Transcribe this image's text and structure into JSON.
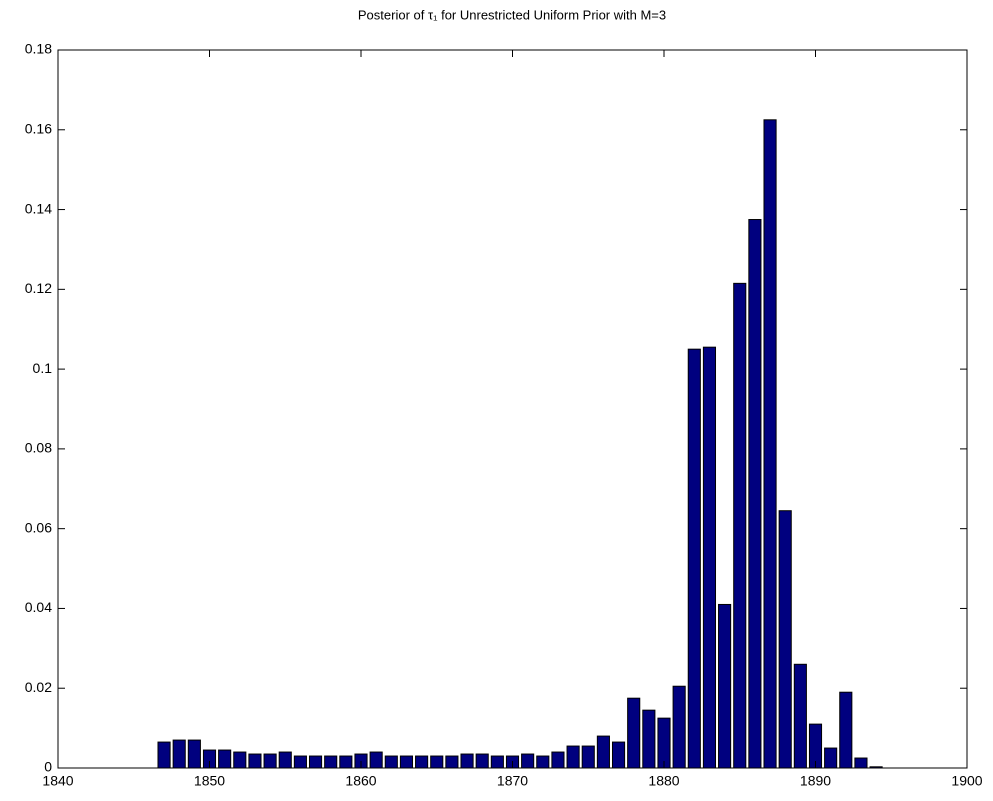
{
  "chart_data": {
    "type": "bar",
    "title": "Posterior of τ₁ for Unrestricted Uniform Prior with M=3",
    "x": [
      1847,
      1848,
      1849,
      1850,
      1851,
      1852,
      1853,
      1854,
      1855,
      1856,
      1857,
      1858,
      1859,
      1860,
      1861,
      1862,
      1863,
      1864,
      1865,
      1866,
      1867,
      1868,
      1869,
      1870,
      1871,
      1872,
      1873,
      1874,
      1875,
      1876,
      1877,
      1878,
      1879,
      1880,
      1881,
      1882,
      1883,
      1884,
      1885,
      1886,
      1887,
      1888,
      1889,
      1890,
      1891,
      1892,
      1893,
      1894
    ],
    "values": [
      0.0065,
      0.007,
      0.007,
      0.0045,
      0.0045,
      0.004,
      0.0035,
      0.0035,
      0.004,
      0.003,
      0.003,
      0.003,
      0.003,
      0.0035,
      0.004,
      0.003,
      0.003,
      0.003,
      0.003,
      0.003,
      0.0035,
      0.0035,
      0.003,
      0.003,
      0.0035,
      0.003,
      0.004,
      0.0055,
      0.0055,
      0.008,
      0.0065,
      0.0175,
      0.0145,
      0.0125,
      0.0205,
      0.105,
      0.1055,
      0.041,
      0.1215,
      0.1375,
      0.1625,
      0.0645,
      0.026,
      0.011,
      0.005,
      0.019,
      0.0025,
      0.0003
    ],
    "color": "#00007f",
    "xlim": [
      1840,
      1900
    ],
    "xticks": [
      1840,
      1850,
      1860,
      1870,
      1880,
      1890,
      1900
    ],
    "ylim": [
      0,
      0.18
    ],
    "yticks": [
      0,
      0.02,
      0.04,
      0.06,
      0.08,
      0.1,
      0.12,
      0.14,
      0.16,
      0.18
    ],
    "grid": false
  }
}
